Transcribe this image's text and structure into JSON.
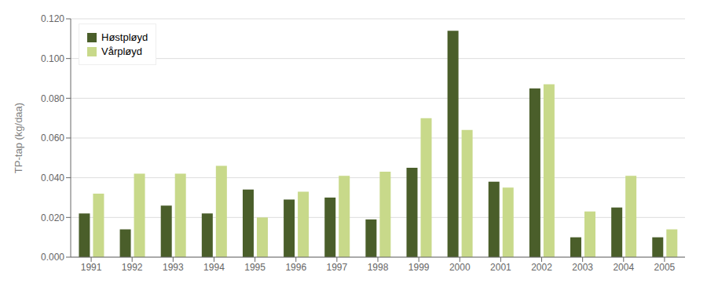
{
  "chart_data": {
    "type": "bar",
    "categories": [
      "1991",
      "1992",
      "1993",
      "1994",
      "1995",
      "1996",
      "1997",
      "1998",
      "1999",
      "2000",
      "2001",
      "2002",
      "2003",
      "2004",
      "2005"
    ],
    "series": [
      {
        "name": "Høstpløyd",
        "color": "#4a5e2a",
        "values": [
          0.022,
          0.014,
          0.026,
          0.022,
          0.034,
          0.029,
          0.03,
          0.019,
          0.045,
          0.114,
          0.038,
          0.085,
          0.01,
          0.025,
          0.01
        ]
      },
      {
        "name": "Vårpløyd",
        "color": "#c8d98a",
        "values": [
          0.032,
          0.042,
          0.042,
          0.046,
          0.02,
          0.033,
          0.041,
          0.043,
          0.07,
          0.064,
          0.035,
          0.087,
          0.023,
          0.041,
          0.014
        ]
      }
    ],
    "ylabel": "TP-tap (kg/daa)",
    "ylim": [
      0,
      0.12
    ],
    "yticks": [
      {
        "value": 0,
        "label": "0.000"
      },
      {
        "value": 0.02,
        "label": "0.020"
      },
      {
        "value": 0.04,
        "label": "0.040"
      },
      {
        "value": 0.06,
        "label": "0.060"
      },
      {
        "value": 0.08,
        "label": "0.080"
      },
      {
        "value": 0.1,
        "label": "0.100"
      },
      {
        "value": 0.12,
        "label": "0.120"
      }
    ],
    "grid": true,
    "legend": "upper left"
  }
}
